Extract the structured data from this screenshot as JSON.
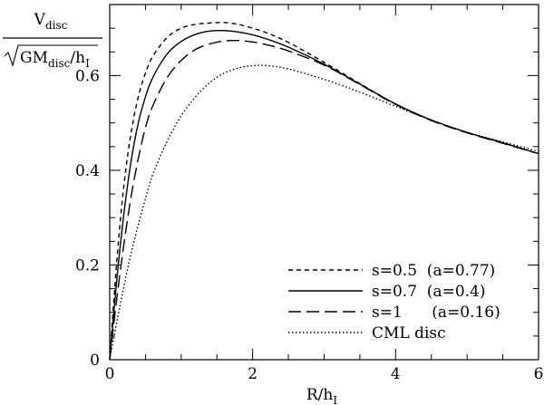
{
  "chart_data": {
    "type": "line",
    "title": "",
    "xlabel": {
      "main": "R/h",
      "sub": "I"
    },
    "ylabel": {
      "numerator": {
        "main": "V",
        "sub": "disc"
      },
      "denominator": {
        "prefix": "GM",
        "sub": "disc",
        "suffix": "/h",
        "sub2": "I"
      }
    },
    "xlim": [
      0,
      6
    ],
    "ylim": [
      0,
      0.75
    ],
    "xticks": [
      0,
      2,
      4,
      6
    ],
    "yticks": [
      0,
      0.2,
      0.4,
      0.6
    ],
    "xtick_labels": [
      "0",
      "2",
      "4",
      "6"
    ],
    "ytick_labels": [
      "0",
      "0.2",
      "0.4",
      "0.6"
    ],
    "legend_position": "lower-right",
    "series": [
      {
        "key": "s05",
        "name": "s=0.5  (a=0.77)",
        "dash": "5,4",
        "x": [
          0,
          0.1,
          0.2,
          0.3,
          0.4,
          0.5,
          0.6,
          0.8,
          1.0,
          1.2,
          1.4,
          1.6,
          1.8,
          2.0,
          2.2,
          2.5,
          3.0,
          3.5,
          4.0,
          4.5,
          5.0,
          5.5,
          6.0
        ],
        "y": [
          0,
          0.21,
          0.37,
          0.48,
          0.555,
          0.605,
          0.64,
          0.68,
          0.7,
          0.708,
          0.711,
          0.712,
          0.708,
          0.7,
          0.69,
          0.67,
          0.628,
          0.583,
          0.54,
          0.506,
          0.48,
          0.458,
          0.435
        ]
      },
      {
        "key": "s07",
        "name": "s=0.7  (a=0.4)",
        "dash": "",
        "x": [
          0,
          0.1,
          0.2,
          0.3,
          0.4,
          0.5,
          0.6,
          0.8,
          1.0,
          1.2,
          1.4,
          1.6,
          1.8,
          2.0,
          2.2,
          2.5,
          3.0,
          3.5,
          4.0,
          4.5,
          5.0,
          5.5,
          6.0
        ],
        "y": [
          0,
          0.17,
          0.31,
          0.42,
          0.5,
          0.555,
          0.595,
          0.645,
          0.672,
          0.687,
          0.694,
          0.695,
          0.692,
          0.686,
          0.677,
          0.66,
          0.624,
          0.582,
          0.54,
          0.506,
          0.48,
          0.458,
          0.435
        ]
      },
      {
        "key": "s1",
        "name": "s=1      (a=0.16)",
        "dash": "14,6",
        "x": [
          0,
          0.1,
          0.2,
          0.3,
          0.4,
          0.5,
          0.6,
          0.8,
          1.0,
          1.2,
          1.4,
          1.6,
          1.8,
          2.0,
          2.2,
          2.5,
          3.0,
          3.5,
          4.0,
          4.5,
          5.0,
          5.5,
          6.0
        ],
        "y": [
          0,
          0.13,
          0.245,
          0.345,
          0.425,
          0.49,
          0.535,
          0.595,
          0.632,
          0.655,
          0.667,
          0.673,
          0.674,
          0.671,
          0.665,
          0.652,
          0.622,
          0.581,
          0.539,
          0.505,
          0.479,
          0.457,
          0.435
        ]
      },
      {
        "key": "cml",
        "name": "CML disc",
        "dash": "1.5,2.5",
        "x": [
          0,
          0.1,
          0.2,
          0.3,
          0.4,
          0.5,
          0.6,
          0.8,
          1.0,
          1.2,
          1.4,
          1.6,
          1.8,
          2.0,
          2.2,
          2.5,
          3.0,
          3.5,
          4.0,
          4.5,
          5.0,
          5.5,
          6.0
        ],
        "y": [
          0,
          0.08,
          0.155,
          0.225,
          0.285,
          0.34,
          0.39,
          0.46,
          0.515,
          0.555,
          0.585,
          0.605,
          0.616,
          0.621,
          0.621,
          0.614,
          0.592,
          0.565,
          0.535,
          0.506,
          0.48,
          0.46,
          0.44
        ]
      }
    ]
  }
}
